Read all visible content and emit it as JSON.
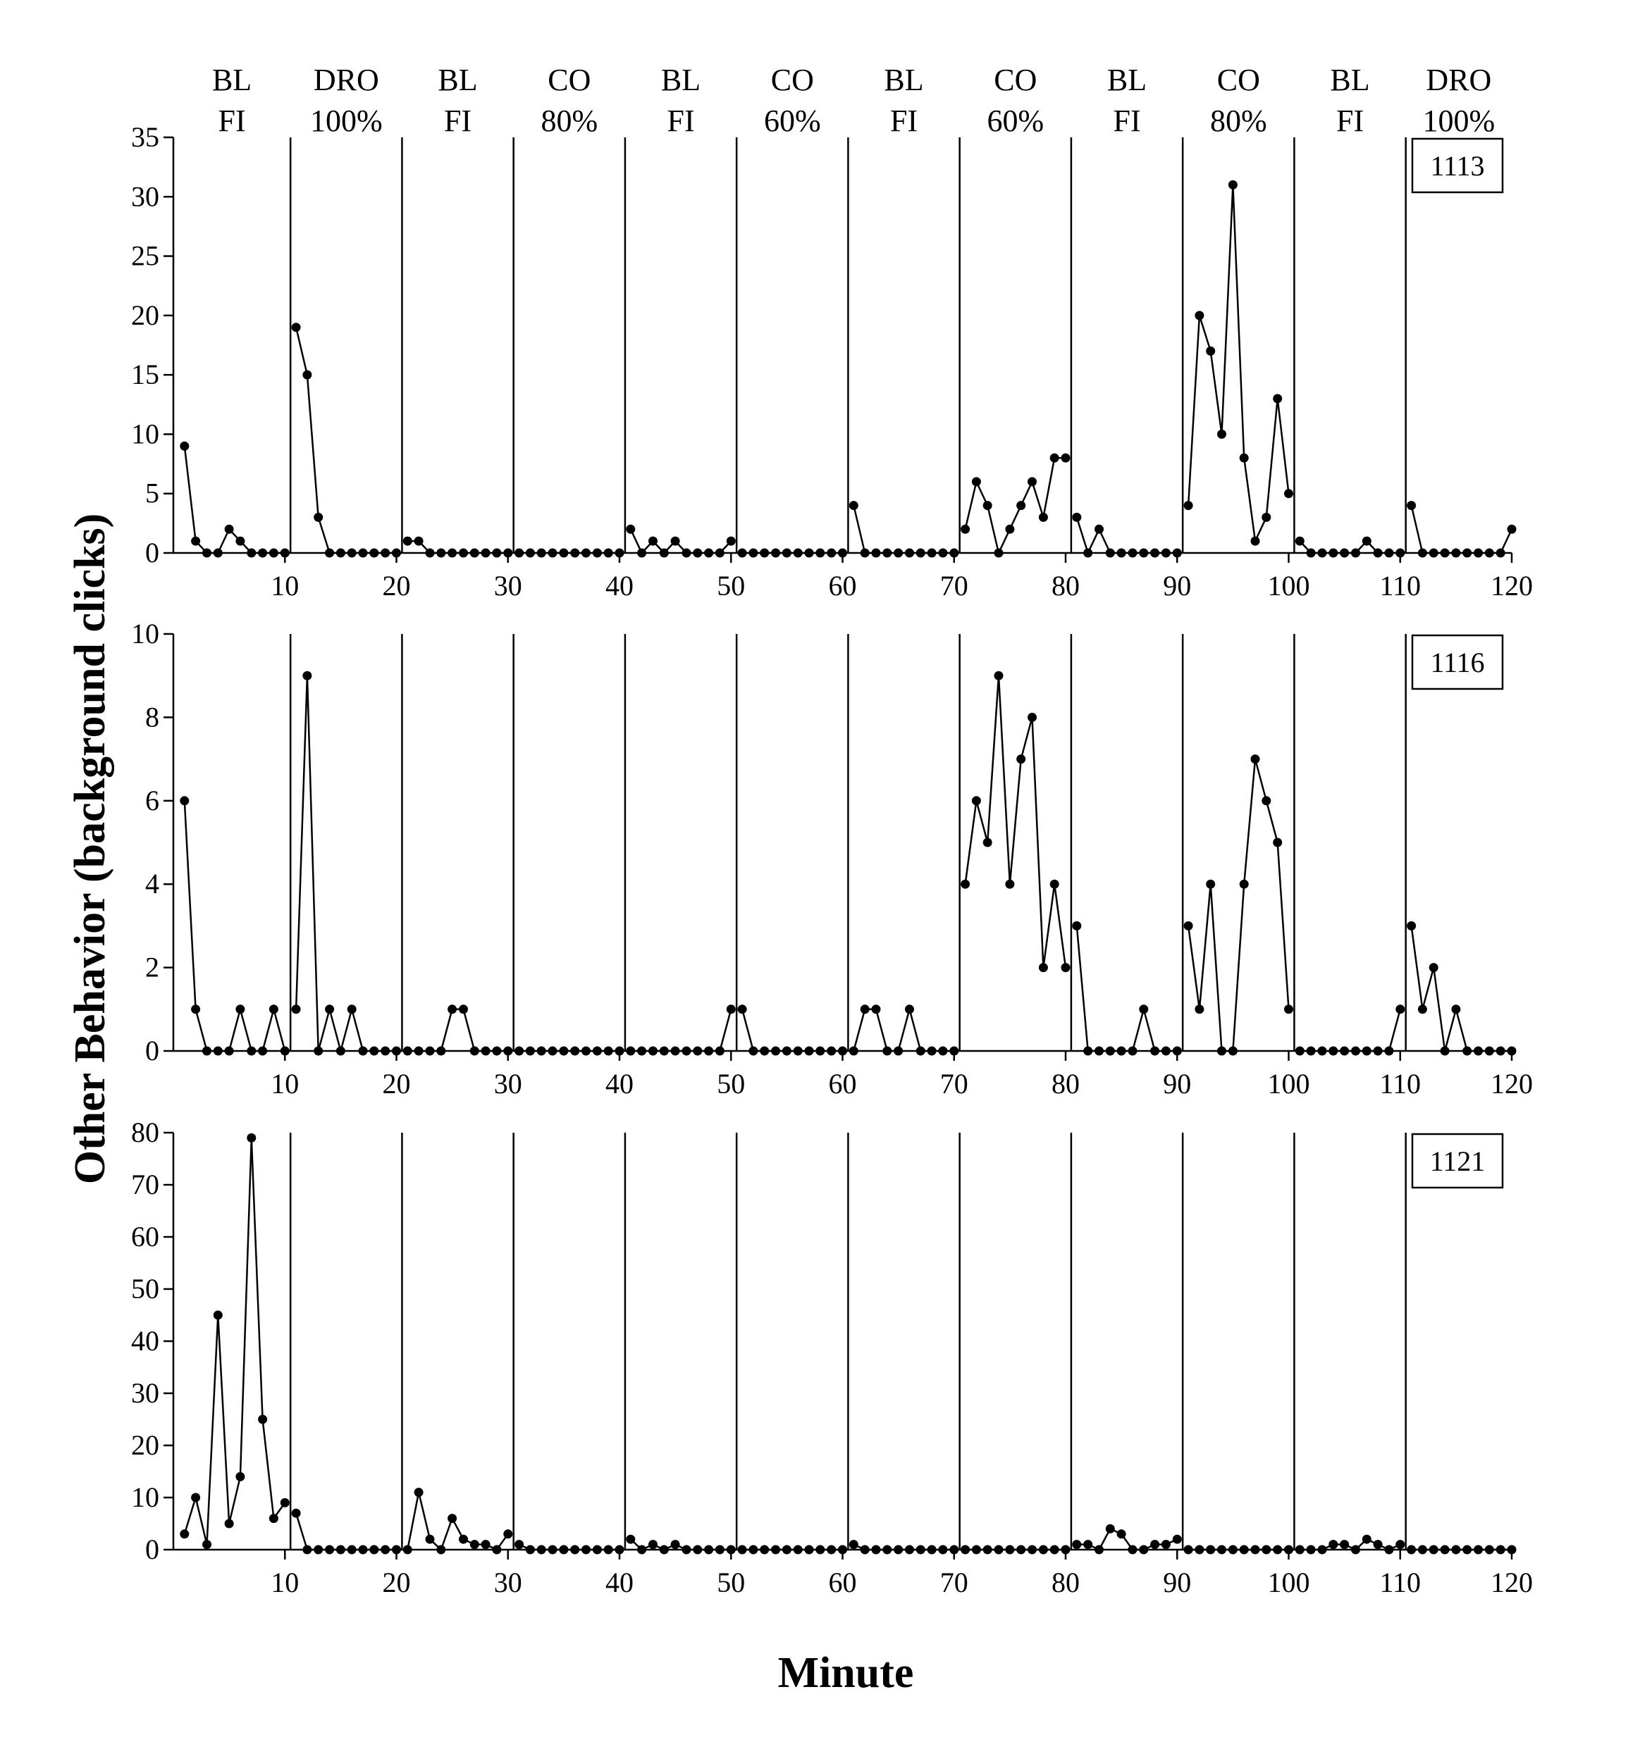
{
  "chart_data": {
    "type": "line",
    "ylabel": "Other Behavior (background clicks)",
    "xlabel": "Minute",
    "x_range": [
      0,
      120
    ],
    "x_ticks": [
      10,
      20,
      30,
      40,
      50,
      60,
      70,
      80,
      90,
      100,
      110,
      120
    ],
    "phase_boundaries": [
      10.5,
      20.5,
      30.5,
      40.5,
      50.5,
      60.5,
      70.5,
      80.5,
      90.5,
      100.5,
      110.5
    ],
    "phases": [
      {
        "line1": "BL",
        "line2": "FI"
      },
      {
        "line1": "DRO",
        "line2": "100%"
      },
      {
        "line1": "BL",
        "line2": "FI"
      },
      {
        "line1": "CO",
        "line2": "80%"
      },
      {
        "line1": "BL",
        "line2": "FI"
      },
      {
        "line1": "CO",
        "line2": "60%"
      },
      {
        "line1": "BL",
        "line2": "FI"
      },
      {
        "line1": "CO",
        "line2": "60%"
      },
      {
        "line1": "BL",
        "line2": "FI"
      },
      {
        "line1": "CO",
        "line2": "80%"
      },
      {
        "line1": "BL",
        "line2": "FI"
      },
      {
        "line1": "DRO",
        "line2": "100%"
      }
    ],
    "panels": [
      {
        "id": "1113",
        "ylim": [
          0,
          35
        ],
        "yticks": [
          0,
          5,
          10,
          15,
          20,
          25,
          30,
          35
        ],
        "values": [
          9,
          1,
          0,
          0,
          2,
          1,
          0,
          0,
          0,
          0,
          19,
          15,
          3,
          0,
          0,
          0,
          0,
          0,
          0,
          0,
          1,
          1,
          0,
          0,
          0,
          0,
          0,
          0,
          0,
          0,
          0,
          0,
          0,
          0,
          0,
          0,
          0,
          0,
          0,
          0,
          2,
          0,
          1,
          0,
          1,
          0,
          0,
          0,
          0,
          1,
          0,
          0,
          0,
          0,
          0,
          0,
          0,
          0,
          0,
          0,
          4,
          0,
          0,
          0,
          0,
          0,
          0,
          0,
          0,
          0,
          2,
          6,
          4,
          0,
          2,
          4,
          6,
          3,
          8,
          8,
          3,
          0,
          2,
          0,
          0,
          0,
          0,
          0,
          0,
          0,
          4,
          20,
          17,
          10,
          31,
          8,
          1,
          3,
          13,
          5,
          1,
          0,
          0,
          0,
          0,
          0,
          1,
          0,
          0,
          0,
          4,
          0,
          0,
          0,
          0,
          0,
          0,
          0,
          0,
          2
        ]
      },
      {
        "id": "1116",
        "ylim": [
          0,
          10
        ],
        "yticks": [
          0,
          2,
          4,
          6,
          8,
          10
        ],
        "values": [
          6,
          1,
          0,
          0,
          0,
          1,
          0,
          0,
          1,
          0,
          1,
          9,
          0,
          1,
          0,
          1,
          0,
          0,
          0,
          0,
          0,
          0,
          0,
          0,
          1,
          1,
          0,
          0,
          0,
          0,
          0,
          0,
          0,
          0,
          0,
          0,
          0,
          0,
          0,
          0,
          0,
          0,
          0,
          0,
          0,
          0,
          0,
          0,
          0,
          1,
          1,
          0,
          0,
          0,
          0,
          0,
          0,
          0,
          0,
          0,
          0,
          1,
          1,
          0,
          0,
          1,
          0,
          0,
          0,
          0,
          4,
          6,
          5,
          9,
          4,
          7,
          8,
          2,
          4,
          2,
          3,
          0,
          0,
          0,
          0,
          0,
          1,
          0,
          0,
          0,
          3,
          1,
          4,
          0,
          0,
          4,
          7,
          6,
          5,
          1,
          0,
          0,
          0,
          0,
          0,
          0,
          0,
          0,
          0,
          1,
          3,
          1,
          2,
          0,
          1,
          0,
          0,
          0,
          0,
          0
        ]
      },
      {
        "id": "1121",
        "ylim": [
          0,
          80
        ],
        "yticks": [
          0,
          10,
          20,
          30,
          40,
          50,
          60,
          70,
          80
        ],
        "values": [
          3,
          10,
          1,
          45,
          5,
          14,
          79,
          25,
          6,
          9,
          7,
          0,
          0,
          0,
          0,
          0,
          0,
          0,
          0,
          0,
          0,
          11,
          2,
          0,
          6,
          2,
          1,
          1,
          0,
          3,
          1,
          0,
          0,
          0,
          0,
          0,
          0,
          0,
          0,
          0,
          2,
          0,
          1,
          0,
          1,
          0,
          0,
          0,
          0,
          0,
          0,
          0,
          0,
          0,
          0,
          0,
          0,
          0,
          0,
          0,
          1,
          0,
          0,
          0,
          0,
          0,
          0,
          0,
          0,
          0,
          0,
          0,
          0,
          0,
          0,
          0,
          0,
          0,
          0,
          0,
          1,
          1,
          0,
          4,
          3,
          0,
          0,
          1,
          1,
          2,
          0,
          0,
          0,
          0,
          0,
          0,
          0,
          0,
          0,
          0,
          0,
          0,
          0,
          1,
          1,
          0,
          2,
          1,
          0,
          1,
          0,
          0,
          0,
          0,
          0,
          0,
          0,
          0,
          0,
          0
        ]
      }
    ]
  }
}
